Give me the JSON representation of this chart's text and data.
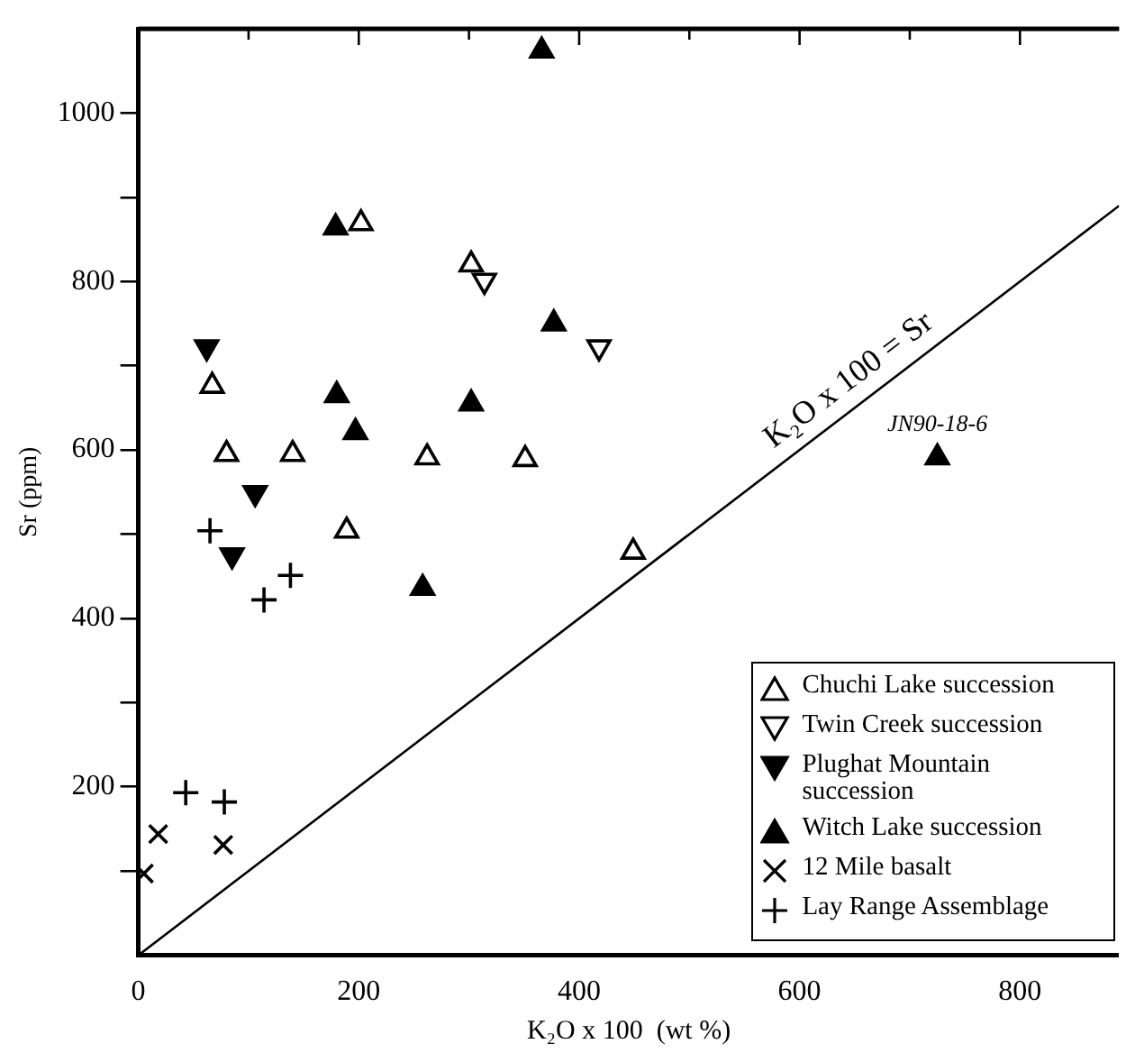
{
  "chart_data": {
    "type": "scatter",
    "xlabel": "K₂O x 100  (wt %)",
    "ylabel": "Sr (ppm)",
    "xlim": [
      0,
      890
    ],
    "ylim": [
      0,
      1100
    ],
    "xticks": [
      0,
      {
        "value": 100,
        "label": null
      },
      200,
      {
        "value": 300,
        "label": null
      },
      400,
      {
        "value": 500,
        "label": null
      },
      600,
      {
        "value": 700,
        "label": null
      },
      800
    ],
    "yticks": [
      {
        "value": 100,
        "label": null
      },
      200,
      {
        "value": 300,
        "label": null
      },
      400,
      {
        "value": 500,
        "label": null
      },
      600,
      {
        "value": 700,
        "label": null
      },
      800,
      {
        "value": 900,
        "label": null
      },
      1000
    ],
    "grid": false,
    "legend": "bottom right",
    "series": [
      {
        "name": "Chuchi Lake succession",
        "color": "#000000",
        "marker": "triangle-open",
        "x": [
          202,
          302,
          67,
          80,
          140,
          262,
          351,
          189,
          449
        ],
        "values": [
          869,
          820,
          676,
          595,
          595,
          591,
          589,
          504,
          479
        ]
      },
      {
        "name": "Twin Creek succession",
        "color": "#000000",
        "marker": "triangle-down-open",
        "x": [
          314,
          418
        ],
        "values": [
          801,
          722
        ]
      },
      {
        "name": "Plughat Mountain succession",
        "color": "#000000",
        "marker": "triangle-down",
        "x": [
          62,
          106,
          85
        ],
        "values": [
          722,
          549,
          475
        ]
      },
      {
        "name": "Witch Lake succession",
        "color": "#000000",
        "marker": "triangle",
        "x": [
          366,
          179,
          377,
          180,
          302,
          197,
          258,
          725
        ],
        "values": [
          1074,
          864,
          750,
          665,
          655,
          621,
          436,
          591
        ]
      },
      {
        "name": "12 Mile basalt",
        "color": "#000000",
        "marker": "x",
        "x": [
          18,
          77,
          5
        ],
        "values": [
          144,
          131,
          97
        ]
      },
      {
        "name": "Lay Range Assemblage",
        "color": "#000000",
        "marker": "cross",
        "x": [
          65,
          138,
          114,
          43,
          78
        ],
        "values": [
          504,
          451,
          422,
          193,
          182
        ]
      },
      {
        "type": "line",
        "color": "#000000",
        "marker": "none",
        "x": [
          0,
          890
        ],
        "values": [
          0,
          890
        ]
      }
    ],
    "annotations": [
      "K₂O x 100 = Sr",
      {
        "text": "JN90-18-6",
        "x": 725,
        "y": 591
      }
    ]
  }
}
